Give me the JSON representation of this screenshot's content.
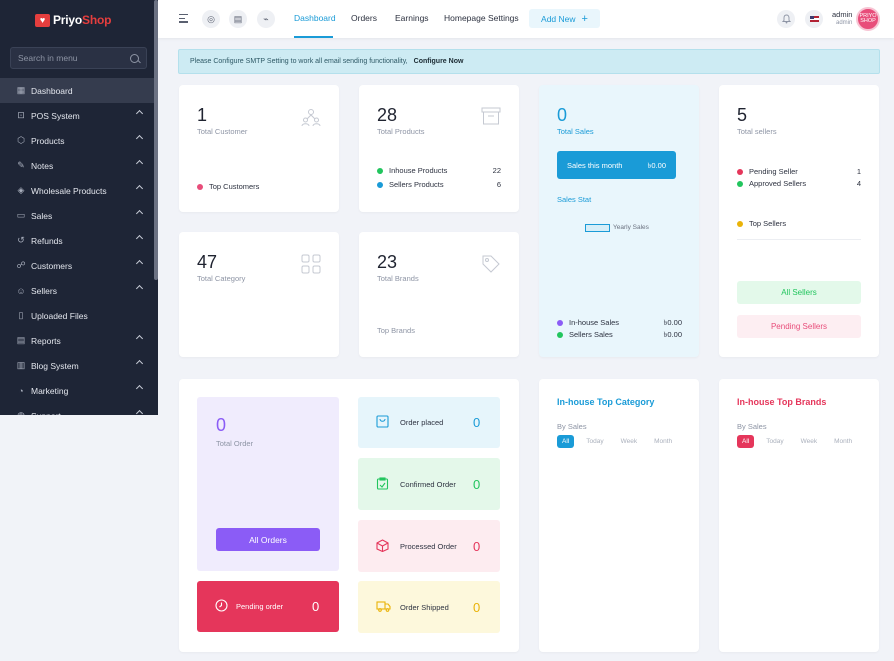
{
  "brand": {
    "prefix": "Priyo",
    "suffix": "Shop"
  },
  "sidebar": {
    "search_placeholder": "Search in menu",
    "items": [
      {
        "label": "Dashboard",
        "icon": "grid-icon",
        "active": true,
        "has_children": false
      },
      {
        "label": "POS System",
        "icon": "pos-icon",
        "has_children": true
      },
      {
        "label": "Products",
        "icon": "cube-icon",
        "has_children": true
      },
      {
        "label": "Notes",
        "icon": "note-icon",
        "has_children": true
      },
      {
        "label": "Wholesale Products",
        "icon": "wholesale-icon",
        "has_children": true
      },
      {
        "label": "Sales",
        "icon": "sales-icon",
        "has_children": true
      },
      {
        "label": "Refunds",
        "icon": "refund-icon",
        "has_children": true
      },
      {
        "label": "Customers",
        "icon": "customers-icon",
        "has_children": true
      },
      {
        "label": "Sellers",
        "icon": "sellers-icon",
        "has_children": true
      },
      {
        "label": "Uploaded Files",
        "icon": "file-icon",
        "has_children": false
      },
      {
        "label": "Reports",
        "icon": "reports-icon",
        "has_children": true
      },
      {
        "label": "Blog System",
        "icon": "blog-icon",
        "has_children": true
      },
      {
        "label": "Marketing",
        "icon": "marketing-icon",
        "has_children": true
      },
      {
        "label": "Support",
        "icon": "support-icon",
        "has_children": true
      }
    ]
  },
  "topbar": {
    "links": [
      "Dashboard",
      "Orders",
      "Earnings",
      "Homepage Settings"
    ],
    "active_link": "Dashboard",
    "add_new": "Add New",
    "admin_name": "admin",
    "admin_role": "admin",
    "avatar_text": "PRIYO SHOP"
  },
  "alert": {
    "message": "Please Configure SMTP Setting to work all email sending functionality,",
    "link": "Configure Now"
  },
  "customers": {
    "value": "1",
    "label": "Total Customer",
    "top_label": "Top Customers",
    "dot_color": "#e84d7a"
  },
  "products": {
    "value": "28",
    "label": "Total Products",
    "inhouse_label": "Inhouse Products",
    "inhouse_value": "22",
    "sellers_label": "Sellers Products",
    "sellers_value": "6"
  },
  "sales": {
    "value": "0",
    "label": "Total Sales",
    "month_label": "Sales this month",
    "month_value": "৳0.00",
    "stat_label": "Sales Stat",
    "legend_label": "Yearly Sales",
    "inhouse_label": "In-house Sales",
    "inhouse_value": "৳0.00",
    "sellers_label": "Sellers Sales",
    "sellers_value": "৳0.00"
  },
  "sellers": {
    "value": "5",
    "label": "Total sellers",
    "pending_label": "Pending Seller",
    "pending_value": "1",
    "approved_label": "Approved Sellers",
    "approved_value": "4",
    "top_label": "Top Sellers",
    "all_button": "All Sellers",
    "pending_button": "Pending Sellers"
  },
  "category": {
    "value": "47",
    "label": "Total Category"
  },
  "brands": {
    "value": "23",
    "label": "Total Brands",
    "top_label": "Top Brands"
  },
  "orders": {
    "total_value": "0",
    "total_label": "Total Order",
    "all_button": "All Orders",
    "pending_label": "Pending order",
    "pending_value": "0",
    "placed_label": "Order placed",
    "placed_value": "0",
    "confirmed_label": "Confirmed Order",
    "confirmed_value": "0",
    "processed_label": "Processed Order",
    "processed_value": "0",
    "shipped_label": "Order Shipped",
    "shipped_value": "0"
  },
  "top_category": {
    "title": "In-house Top Category",
    "by_label": "By Sales",
    "filters": [
      "All",
      "Today",
      "Week",
      "Month"
    ],
    "active_filter": "All"
  },
  "top_brands": {
    "title": "In-house Top Brands",
    "by_label": "By Sales",
    "filters": [
      "All",
      "Today",
      "Week",
      "Month"
    ],
    "active_filter": "All"
  },
  "colors": {
    "primary": "#1a9bd7",
    "danger": "#e5365b",
    "purple": "#8b5cf6",
    "green": "#22c55e",
    "yellow": "#eab308",
    "sidebar_bg": "#1e2536"
  }
}
